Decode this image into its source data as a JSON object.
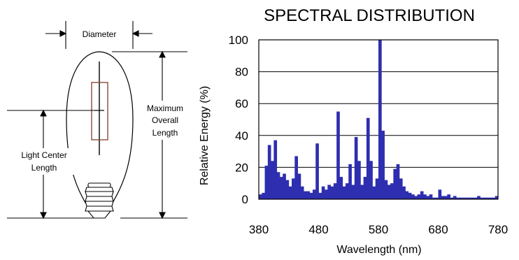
{
  "diagram": {
    "diameter_label": "Diameter",
    "max_length_label": [
      "Maximum",
      "Overall",
      "Length"
    ],
    "lcl_label": [
      "Light Center",
      "Length"
    ]
  },
  "chart_data": {
    "type": "bar",
    "title": "SPECTRAL DISTRIBUTION",
    "xlabel": "Wavelength (nm)",
    "ylabel": "Relative Energy (%)",
    "xlim": [
      380,
      780
    ],
    "ylim": [
      0,
      100
    ],
    "xticks": [
      380,
      480,
      580,
      680,
      780
    ],
    "yticks": [
      0,
      20,
      40,
      60,
      80,
      100
    ],
    "grid": "horizontal",
    "color": "#2e2eb0",
    "x": [
      380,
      385,
      390,
      395,
      400,
      405,
      410,
      415,
      420,
      425,
      430,
      435,
      440,
      445,
      450,
      455,
      460,
      465,
      470,
      475,
      480,
      485,
      490,
      495,
      500,
      505,
      510,
      515,
      520,
      525,
      530,
      535,
      540,
      545,
      550,
      555,
      560,
      565,
      570,
      575,
      580,
      585,
      590,
      595,
      600,
      605,
      610,
      615,
      620,
      625,
      630,
      635,
      640,
      645,
      650,
      655,
      660,
      665,
      670,
      675,
      680,
      685,
      690,
      695,
      700,
      705,
      710,
      715,
      720,
      725,
      730,
      735,
      740,
      745,
      750,
      755,
      760,
      765,
      770,
      775
    ],
    "values": [
      3,
      4,
      21,
      34,
      24,
      37,
      17,
      14,
      16,
      12,
      8,
      13,
      27,
      16,
      8,
      5,
      5,
      4,
      6,
      35,
      4,
      8,
      6,
      9,
      8,
      10,
      55,
      14,
      8,
      10,
      22,
      9,
      39,
      24,
      9,
      14,
      51,
      24,
      8,
      13,
      100,
      43,
      12,
      9,
      10,
      19,
      22,
      13,
      8,
      5,
      4,
      3,
      2,
      3,
      5,
      3,
      2,
      3,
      1,
      1,
      6,
      2,
      2,
      3,
      1,
      2,
      1,
      1,
      1,
      1,
      1,
      1,
      1,
      2,
      1,
      1,
      1,
      1,
      1,
      2
    ]
  }
}
